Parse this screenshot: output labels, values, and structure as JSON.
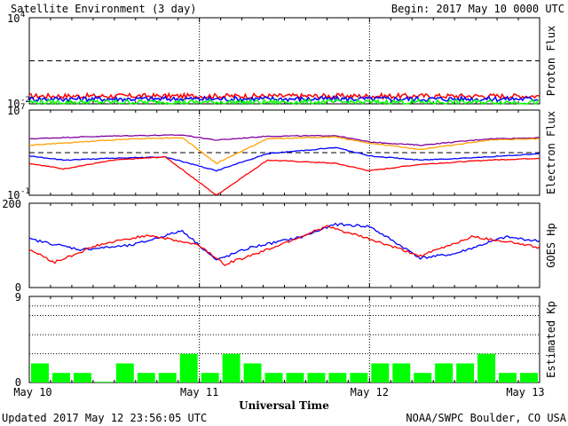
{
  "header": {
    "title": "Satellite Environment (3 day)",
    "begin": "Begin:  2017 May 10 0000 UTC"
  },
  "footer": {
    "updated": "Updated 2017 May 12 23:56:05 UTC",
    "credit": "NOAA/SWPC Boulder, CO USA"
  },
  "chart_data": [
    {
      "type": "line",
      "ylabel": "Proton Flux",
      "yscale": "log",
      "ylim": [
        0.01,
        10000
      ],
      "ticks": [
        {
          "base": "10",
          "exp": "4"
        },
        {
          "base": "10",
          "exp": "-2"
        }
      ],
      "reference_line": 10,
      "series": [
        {
          "color": "#ff0000",
          "level": 0.035
        },
        {
          "color": "#0000ff",
          "level": 0.022
        },
        {
          "color": "#00ff00",
          "level": 0.013
        }
      ]
    },
    {
      "type": "line",
      "ylabel": "Electron Flux",
      "yscale": "log",
      "ylim": [
        0.1,
        10000000
      ],
      "ticks": [
        {
          "base": "10",
          "exp": "7"
        },
        {
          "base": "10",
          "exp": "-1"
        }
      ],
      "reference_line": 1000,
      "series": [
        {
          "color": "#8000a0",
          "x": [
            0,
            0.3,
            0.6,
            0.9,
            1.1,
            1.4,
            1.8,
            2.0,
            2.3,
            2.7,
            3.0
          ],
          "y": [
            20000,
            30000,
            40000,
            45000,
            15000,
            35000,
            40000,
            10000,
            5000,
            20000,
            25000
          ]
        },
        {
          "color": "#ffa000",
          "x": [
            0,
            0.3,
            0.6,
            0.9,
            1.1,
            1.4,
            1.8,
            2.0,
            2.3,
            2.7,
            3.0
          ],
          "y": [
            5000,
            10000,
            20000,
            25000,
            100,
            20000,
            30000,
            8000,
            2000,
            15000,
            20000
          ]
        },
        {
          "color": "#0000ff",
          "x": [
            0,
            0.2,
            0.5,
            0.8,
            1.1,
            1.4,
            1.8,
            2.0,
            2.3,
            2.7,
            3.0
          ],
          "y": [
            500,
            200,
            300,
            400,
            20,
            800,
            3000,
            500,
            200,
            400,
            800
          ]
        },
        {
          "color": "#ff0000",
          "x": [
            0,
            0.2,
            0.5,
            0.8,
            1.1,
            1.4,
            1.8,
            2.0,
            2.3,
            2.7,
            3.0
          ],
          "y": [
            100,
            30,
            200,
            400,
            0.1,
            200,
            100,
            20,
            80,
            200,
            300
          ]
        }
      ]
    },
    {
      "type": "line",
      "ylabel": "GOES Hp",
      "ylim": [
        0,
        200
      ],
      "ticks": [
        "200",
        "0"
      ],
      "series": [
        {
          "color": "#0000ff",
          "x": [
            0,
            0.3,
            0.6,
            0.9,
            1.1,
            1.3,
            1.6,
            1.8,
            2.0,
            2.3,
            2.5,
            2.8,
            3.0
          ],
          "y": [
            115,
            90,
            100,
            135,
            65,
            95,
            120,
            150,
            145,
            70,
            80,
            120,
            110
          ]
        },
        {
          "color": "#ff0000",
          "x": [
            0,
            0.15,
            0.4,
            0.7,
            1.0,
            1.15,
            1.4,
            1.75,
            2.0,
            2.3,
            2.6,
            2.8,
            3.0
          ],
          "y": [
            90,
            60,
            100,
            125,
            100,
            55,
            90,
            145,
            115,
            75,
            120,
            110,
            95
          ]
        }
      ]
    },
    {
      "type": "bar",
      "ylabel": "Estimated Kp",
      "ylim": [
        0,
        9
      ],
      "ticks": [
        "9",
        "0"
      ],
      "x_tick_labels": [
        "May 10",
        "May 11",
        "May 12",
        "May 13"
      ],
      "xlabel": "Universal Time",
      "values": [
        2,
        1,
        1,
        0,
        2,
        1,
        1,
        3,
        1,
        3,
        2,
        1,
        1,
        1,
        1,
        1,
        2,
        2,
        1,
        2,
        2,
        3,
        1,
        1
      ]
    }
  ]
}
